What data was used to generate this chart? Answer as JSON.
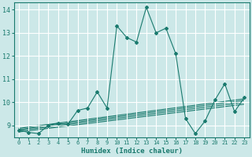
{
  "xlabel": "Humidex (Indice chaleur)",
  "xlim": [
    -0.5,
    23.5
  ],
  "ylim": [
    8.5,
    14.3
  ],
  "yticks": [
    9,
    10,
    11,
    12,
    13,
    14
  ],
  "xticks": [
    0,
    1,
    2,
    3,
    4,
    5,
    6,
    7,
    8,
    9,
    10,
    11,
    12,
    13,
    14,
    15,
    16,
    17,
    18,
    19,
    20,
    21,
    22,
    23
  ],
  "bg_color": "#cce8e8",
  "grid_color": "#ffffff",
  "line_color": "#1a7a6e",
  "curve1_x": [
    0,
    1,
    2,
    3,
    4,
    5,
    6,
    7,
    8,
    9,
    10,
    11,
    12,
    13,
    14,
    15,
    16,
    17,
    18,
    19,
    20,
    21,
    22,
    23
  ],
  "curve1_y": [
    8.8,
    8.7,
    8.65,
    9.0,
    9.1,
    9.05,
    9.65,
    9.75,
    10.45,
    9.75,
    13.3,
    12.8,
    12.6,
    14.1,
    13.0,
    13.2,
    12.1,
    9.3,
    8.65,
    9.2,
    10.1,
    10.8,
    9.6,
    10.2
  ],
  "line2_x": [
    0,
    23
  ],
  "line2_y": [
    8.88,
    10.15
  ],
  "line3_x": [
    0,
    23
  ],
  "line3_y": [
    8.83,
    10.08
  ],
  "line4_x": [
    0,
    23
  ],
  "line4_y": [
    8.78,
    10.0
  ],
  "line5_x": [
    0,
    23
  ],
  "line5_y": [
    8.72,
    9.92
  ]
}
